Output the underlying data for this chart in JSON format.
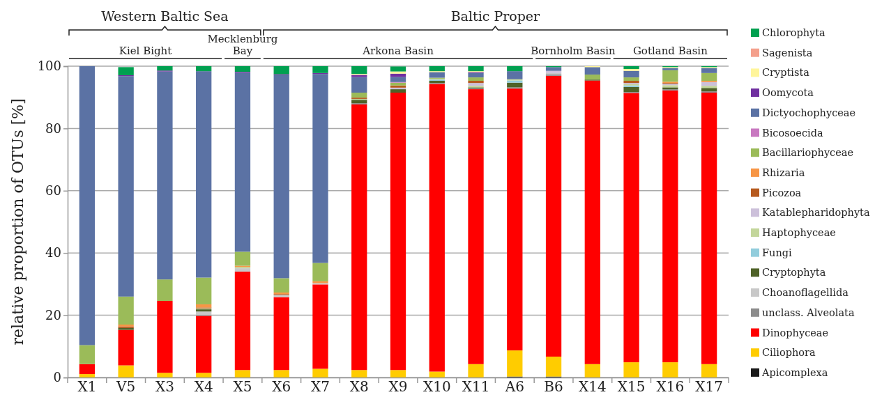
{
  "chart_data": {
    "type": "bar",
    "stacked": true,
    "ylabel": "relative proportion of OTUs [%]",
    "ylim": [
      0,
      100
    ],
    "yticks": [
      0,
      20,
      40,
      60,
      80,
      100
    ],
    "grid": "y",
    "legend": "right",
    "categories": [
      "X1",
      "V5",
      "X3",
      "X4",
      "X5",
      "X6",
      "X7",
      "X8",
      "X9",
      "X10",
      "X11",
      "A6",
      "B6",
      "X14",
      "X15",
      "X16",
      "X17"
    ],
    "annotations": [
      "Western Baltic Sea",
      "Baltic Proper",
      "Kiel Bight",
      "Mecklenburg Bay",
      "Arkona Basin",
      "Bornholm Basin",
      "Gotland  Basin"
    ],
    "series": [
      {
        "name": "Apicomplexa",
        "color": "#1a1a1a",
        "values": [
          0,
          0,
          0,
          0,
          0,
          0,
          0,
          0,
          0,
          0,
          0,
          0.3,
          0.3,
          0,
          0,
          0,
          0
        ]
      },
      {
        "name": "Ciliophora",
        "color": "#ffcc00",
        "values": [
          1.1,
          3.9,
          1.5,
          1.5,
          2.4,
          2.4,
          2.8,
          2.4,
          2.4,
          1.9,
          4.3,
          8.4,
          6.4,
          4.3,
          4.9,
          4.9,
          4.3
        ]
      },
      {
        "name": "Dinophyceae",
        "color": "#ff0000",
        "values": [
          3.2,
          11.4,
          23.1,
          18.3,
          31.6,
          23.4,
          27.1,
          85.3,
          89.1,
          92.4,
          88.3,
          84.1,
          90.2,
          91.1,
          86.5,
          87.3,
          87.2
        ]
      },
      {
        "name": "unclass. Alveolata",
        "color": "#8c8c8c",
        "values": [
          0,
          0,
          0,
          0.3,
          0,
          0,
          0,
          0.4,
          0,
          0.3,
          0.3,
          0.4,
          0.5,
          0,
          0.3,
          0.4,
          0.4
        ]
      },
      {
        "name": "Choanoflagellida",
        "color": "#c8c8c8",
        "values": [
          0,
          null,
          0,
          1.1,
          1.1,
          0.7,
          0.4,
          0,
          null,
          0,
          0,
          0,
          0.4,
          0,
          0,
          0,
          0
        ]
      },
      {
        "name": "Cryptophyta",
        "color": "#4f6228",
        "values": [
          0,
          0.6,
          0,
          0.7,
          0,
          0,
          0,
          1.1,
          1.1,
          0.7,
          0.3,
          1.5,
          0,
          0.3,
          1.6,
          0.6,
          1.1
        ]
      },
      {
        "name": "Fungi",
        "color": "#92cddc",
        "values": [
          0,
          0,
          0,
          0,
          0,
          0,
          0,
          0,
          0,
          0.4,
          0,
          0.7,
          0,
          0,
          0.5,
          0,
          0
        ]
      },
      {
        "name": "Haptophyceae",
        "color": "#c3d69b",
        "values": [
          0,
          0,
          0,
          0.3,
          0.4,
          0,
          0,
          0.3,
          0,
          0.3,
          0.5,
          0.4,
          0,
          0,
          0.4,
          0.7,
          0.7
        ]
      },
      {
        "name": "Katablepharidophyta",
        "color": "#ccc0da",
        "values": [
          0,
          0,
          0,
          0,
          0,
          0,
          0,
          0,
          0.5,
          0,
          0.9,
          0,
          0.7,
          0,
          0.4,
          0.4,
          1.2
        ]
      },
      {
        "name": "Picozoa",
        "color": "#b65a1f",
        "values": [
          0,
          0.5,
          0,
          0.3,
          0,
          0.3,
          0,
          0.4,
          0.7,
          0,
          0.7,
          0,
          0,
          0,
          0.7,
          0.3,
          0
        ]
      },
      {
        "name": "Rhizaria",
        "color": "#f79646",
        "values": [
          0,
          0.6,
          0,
          1.0,
          0.4,
          0.5,
          0.6,
          0,
          0,
          0,
          0,
          0,
          0,
          0,
          0,
          0.4,
          0.4
        ]
      },
      {
        "name": "Bacillariophyceae",
        "color": "#9bbb59",
        "values": [
          6.1,
          9.0,
          6.9,
          8.6,
          4.5,
          4.6,
          5.9,
          1.6,
          0.9,
          0.3,
          1.1,
          0,
          0,
          1.6,
          1.1,
          3.7,
          2.5
        ]
      },
      {
        "name": "Bicosoecida",
        "color": "#c878c0",
        "values": [
          0,
          0,
          0,
          0,
          0,
          0,
          0,
          0,
          0.2,
          0,
          0,
          0,
          0,
          0,
          0,
          0,
          0
        ]
      },
      {
        "name": "Dictyochophyceae",
        "color": "#5b72a4",
        "values": [
          89.6,
          70.8,
          66.8,
          66.3,
          57.5,
          65.2,
          60.7,
          5.0,
          1.6,
          1.8,
          1.4,
          2.6,
          1.2,
          2.4,
          2.1,
          0.7,
          1.6
        ]
      },
      {
        "name": "Oomycota",
        "color": "#7030a0",
        "values": [
          0,
          0.3,
          0.3,
          0,
          0.3,
          0.3,
          0.3,
          0.7,
          1.1,
          0,
          0.3,
          0,
          0,
          0,
          0,
          0,
          0
        ]
      },
      {
        "name": "Cryptista",
        "color": "#fff59b",
        "values": [
          0,
          0,
          0,
          0,
          0,
          0,
          0,
          0.3,
          0.7,
          0.3,
          0.3,
          0,
          0,
          0.3,
          0.6,
          0.3,
          0.3
        ]
      },
      {
        "name": "Sagenista",
        "color": "#f4a08c",
        "values": [
          0,
          0,
          0,
          0,
          0,
          0,
          0,
          0,
          0,
          0,
          0,
          0,
          0,
          0,
          0,
          0,
          null
        ]
      },
      {
        "name": "Chlorophyta",
        "color": "#00a050",
        "values": [
          0,
          2.6,
          1.4,
          1.6,
          1.8,
          2.6,
          2.2,
          2.5,
          1.6,
          1.6,
          1.6,
          1.6,
          0.3,
          0,
          0.9,
          0.3,
          0.3
        ]
      }
    ]
  }
}
